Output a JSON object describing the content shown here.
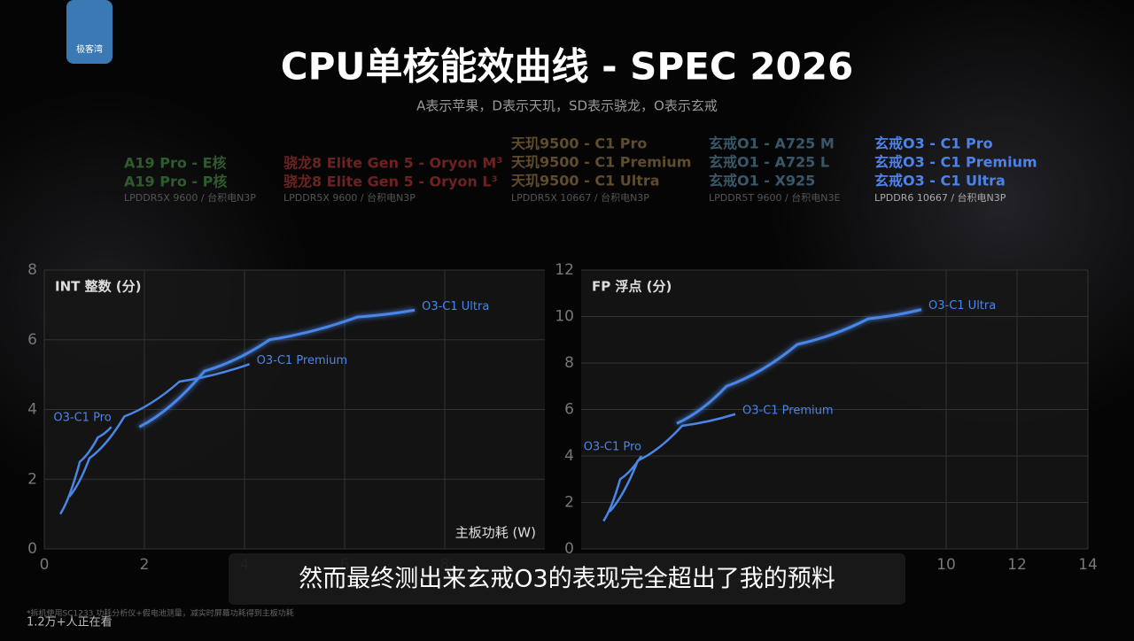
{
  "logo": "极客湾",
  "header": {
    "title": "CPU单核能效曲线 - SPEC 2026",
    "subtitle": "A表示苹果，D表示天玑，SD表示骁龙，O表示玄戒"
  },
  "legend_groups": [
    {
      "color": "#2f5c2c",
      "lines": [
        "A19 Pro - E核",
        "A19 Pro - P核"
      ],
      "note": "LPDDR5X 9600 / 台积电N3P"
    },
    {
      "color": "#6b2220",
      "lines": [
        "骁龙8 Elite Gen 5 - Oryon M³",
        "骁龙8 Elite Gen 5 - Oryon L³"
      ],
      "note": "LPDDR5X 9600 / 台积电N3P"
    },
    {
      "color": "#5e4c2c",
      "lines": [
        "天玑9500 - C1 Pro",
        "天玑9500 - C1 Premium",
        "天玑9500 - C1 Ultra"
      ],
      "note": "LPDDR5X 10667 / 台积电N3P"
    },
    {
      "color": "#38586a",
      "lines": [
        "玄戒O1 - A725 M",
        "玄戒O1 - A725 L",
        "玄戒O1 - X925"
      ],
      "note": "LPDDR5T 9600 / 台积电N3E"
    },
    {
      "color": "#4d82ea",
      "lines": [
        "玄戒O3 - C1 Pro",
        "玄戒O3 - C1 Premium",
        "玄戒O3 - C1 Ultra"
      ],
      "note": "LPDDR6 10667 / 台积电N3P"
    }
  ],
  "chart_data": [
    {
      "type": "line",
      "title": "INT 整数 (分)",
      "x_label": "主板功耗 (W)",
      "xlim": [
        0,
        10
      ],
      "ylim": [
        0,
        8
      ],
      "xticks": [
        0,
        2,
        4,
        6,
        8
      ],
      "yticks": [
        0,
        2,
        4,
        6,
        8
      ],
      "grid": true,
      "series": [
        {
          "name": "O3-C1 Pro",
          "color": "#4a86e8",
          "x": [
            0.32,
            0.71,
            1.07,
            1.34
          ],
          "values": [
            1.0,
            2.5,
            3.2,
            3.5
          ]
        },
        {
          "name": "O3-C1 Premium",
          "color": "#4a86e8",
          "x": [
            0.5,
            0.9,
            1.6,
            2.7,
            4.1
          ],
          "values": [
            1.5,
            2.6,
            3.8,
            4.8,
            5.3
          ]
        },
        {
          "name": "O3-C1 Ultra",
          "color": "#4a86e8",
          "x": [
            1.9,
            3.2,
            4.5,
            6.25,
            7.4
          ],
          "values": [
            3.5,
            5.1,
            6.0,
            6.65,
            6.85
          ]
        }
      ]
    },
    {
      "type": "line",
      "title": "FP 浮点 (分)",
      "xlim": [
        -0.3,
        14
      ],
      "ylim": [
        0,
        12
      ],
      "xticks": [
        10,
        12,
        14
      ],
      "yticks": [
        0,
        2,
        4,
        6,
        8,
        10,
        12
      ],
      "grid": true,
      "series": [
        {
          "name": "O3-C1 Pro",
          "color": "#4a86e8",
          "x": [
            0.33,
            0.8,
            1.4
          ],
          "values": [
            1.2,
            3.0,
            4.0
          ]
        },
        {
          "name": "O3-C1 Premium",
          "color": "#4a86e8",
          "x": [
            0.5,
            1.3,
            2.55,
            4.05
          ],
          "values": [
            1.6,
            3.8,
            5.3,
            5.8
          ]
        },
        {
          "name": "O3-C1 Ultra",
          "color": "#4a86e8",
          "x": [
            2.4,
            3.8,
            5.8,
            7.8,
            9.3
          ],
          "values": [
            5.4,
            7.0,
            8.8,
            9.9,
            10.3
          ]
        }
      ]
    }
  ],
  "caption": "然而最终测出来玄戒O3的表现完全超出了我的预料",
  "footnote": "*拆机使用SC1233 功耗分析仪+假电池测量，减实时屏幕功耗得到主板功耗",
  "viewers": "1.2万+人正在看"
}
